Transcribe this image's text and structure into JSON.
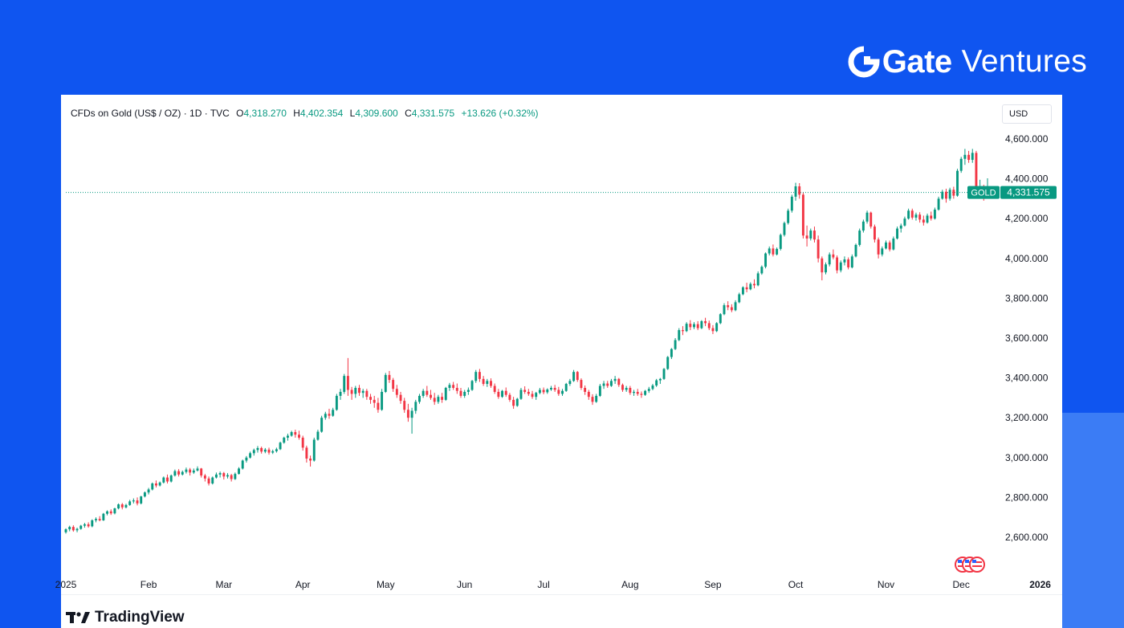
{
  "brand": {
    "word": "Gate",
    "sub": "Ventures",
    "colors": {
      "background": "#0f55f0",
      "text": "#ffffff"
    }
  },
  "legend": {
    "symbol": "CFDs on Gold (US$ / OZ) · 1D · TVC",
    "open_label": "O",
    "open": "4,318.270",
    "high_label": "H",
    "high": "4,402.354",
    "low_label": "L",
    "low": "4,309.600",
    "close_label": "C",
    "close": "4,331.575",
    "change": "+13.626 (+0.32%)"
  },
  "currency": "USD",
  "price_tag": {
    "symbol": "GOLD",
    "value": "4,331.575"
  },
  "footer": {
    "logo_text": "TradingView",
    "logo_icon": "tradingview-logo-icon"
  },
  "chart_data": {
    "type": "candlestick",
    "y_ticks": [
      "4,600.000",
      "4,400.000",
      "4,200.000",
      "4,000.000",
      "3,800.000",
      "3,600.000",
      "3,400.000",
      "3,200.000",
      "3,000.000",
      "2,800.000",
      "2,600.000"
    ],
    "y_tick_values": [
      4600,
      4400,
      4200,
      4000,
      3800,
      3600,
      3400,
      3200,
      3000,
      2800,
      2600
    ],
    "ylim": [
      2440,
      4660
    ],
    "x_ticks": [
      {
        "label": "2025",
        "index": 0
      },
      {
        "label": "Feb",
        "index": 22
      },
      {
        "label": "Mar",
        "index": 42
      },
      {
        "label": "Apr",
        "index": 63
      },
      {
        "label": "May",
        "index": 85
      },
      {
        "label": "Jun",
        "index": 106
      },
      {
        "label": "Jul",
        "index": 127
      },
      {
        "label": "Aug",
        "index": 150
      },
      {
        "label": "Sep",
        "index": 172
      },
      {
        "label": "Oct",
        "index": 194
      },
      {
        "label": "Nov",
        "index": 218
      },
      {
        "label": "Dec",
        "index": 238
      },
      {
        "label": "2026",
        "index": 259
      }
    ],
    "bold_x_labels": [
      "2026"
    ],
    "last_price": 4331.575,
    "colors": {
      "up": "#089981",
      "down": "#f23645",
      "price_line": "#089981"
    },
    "grid": false,
    "events_icon": "flag-us-icon",
    "ohlc": [
      [
        2625,
        2645,
        2618,
        2640
      ],
      [
        2640,
        2658,
        2630,
        2652
      ],
      [
        2652,
        2660,
        2628,
        2635
      ],
      [
        2635,
        2648,
        2625,
        2642
      ],
      [
        2642,
        2662,
        2638,
        2658
      ],
      [
        2658,
        2672,
        2648,
        2665
      ],
      [
        2665,
        2675,
        2648,
        2655
      ],
      [
        2655,
        2690,
        2650,
        2685
      ],
      [
        2685,
        2700,
        2675,
        2692
      ],
      [
        2692,
        2706,
        2680,
        2685
      ],
      [
        2685,
        2722,
        2682,
        2718
      ],
      [
        2718,
        2735,
        2710,
        2730
      ],
      [
        2730,
        2740,
        2712,
        2720
      ],
      [
        2720,
        2748,
        2715,
        2745
      ],
      [
        2745,
        2770,
        2740,
        2765
      ],
      [
        2765,
        2772,
        2740,
        2750
      ],
      [
        2750,
        2768,
        2745,
        2762
      ],
      [
        2762,
        2788,
        2758,
        2780
      ],
      [
        2780,
        2795,
        2770,
        2785
      ],
      [
        2785,
        2800,
        2760,
        2770
      ],
      [
        2770,
        2808,
        2765,
        2805
      ],
      [
        2805,
        2830,
        2800,
        2825
      ],
      [
        2825,
        2848,
        2815,
        2840
      ],
      [
        2840,
        2875,
        2835,
        2870
      ],
      [
        2870,
        2885,
        2850,
        2860
      ],
      [
        2860,
        2880,
        2855,
        2875
      ],
      [
        2875,
        2905,
        2870,
        2900
      ],
      [
        2900,
        2915,
        2870,
        2880
      ],
      [
        2880,
        2915,
        2875,
        2910
      ],
      [
        2910,
        2940,
        2905,
        2932
      ],
      [
        2932,
        2942,
        2905,
        2915
      ],
      [
        2915,
        2935,
        2910,
        2928
      ],
      [
        2928,
        2950,
        2920,
        2940
      ],
      [
        2940,
        2948,
        2910,
        2925
      ],
      [
        2925,
        2945,
        2918,
        2935
      ],
      [
        2935,
        2956,
        2930,
        2945
      ],
      [
        2945,
        2948,
        2900,
        2910
      ],
      [
        2910,
        2918,
        2880,
        2895
      ],
      [
        2895,
        2905,
        2860,
        2870
      ],
      [
        2870,
        2905,
        2865,
        2900
      ],
      [
        2900,
        2925,
        2895,
        2915
      ],
      [
        2915,
        2930,
        2900,
        2922
      ],
      [
        2922,
        2928,
        2890,
        2905
      ],
      [
        2905,
        2922,
        2895,
        2912
      ],
      [
        2912,
        2918,
        2880,
        2892
      ],
      [
        2892,
        2925,
        2888,
        2918
      ],
      [
        2918,
        2952,
        2915,
        2945
      ],
      [
        2945,
        2990,
        2940,
        2985
      ],
      [
        2985,
        3008,
        2975,
        3000
      ],
      [
        3000,
        3030,
        2995,
        3022
      ],
      [
        3022,
        3045,
        3010,
        3038
      ],
      [
        3038,
        3058,
        3025,
        3048
      ],
      [
        3048,
        3055,
        3020,
        3030
      ],
      [
        3030,
        3048,
        3022,
        3040
      ],
      [
        3040,
        3050,
        3015,
        3025
      ],
      [
        3025,
        3040,
        3018,
        3032
      ],
      [
        3032,
        3050,
        3025,
        3042
      ],
      [
        3042,
        3080,
        3038,
        3075
      ],
      [
        3075,
        3105,
        3070,
        3100
      ],
      [
        3100,
        3120,
        3085,
        3110
      ],
      [
        3110,
        3135,
        3105,
        3128
      ],
      [
        3128,
        3140,
        3100,
        3115
      ],
      [
        3115,
        3135,
        3090,
        3100
      ],
      [
        3100,
        3110,
        3035,
        3050
      ],
      [
        3050,
        3060,
        2975,
        2995
      ],
      [
        2995,
        3010,
        2955,
        2985
      ],
      [
        2985,
        3100,
        2980,
        3090
      ],
      [
        3090,
        3140,
        3085,
        3130
      ],
      [
        3130,
        3210,
        3125,
        3200
      ],
      [
        3200,
        3230,
        3190,
        3220
      ],
      [
        3220,
        3245,
        3195,
        3210
      ],
      [
        3210,
        3250,
        3205,
        3240
      ],
      [
        3240,
        3320,
        3235,
        3310
      ],
      [
        3310,
        3345,
        3290,
        3330
      ],
      [
        3330,
        3420,
        3320,
        3410
      ],
      [
        3410,
        3500,
        3310,
        3340
      ],
      [
        3340,
        3355,
        3290,
        3320
      ],
      [
        3320,
        3360,
        3300,
        3350
      ],
      [
        3350,
        3365,
        3310,
        3325
      ],
      [
        3325,
        3345,
        3300,
        3335
      ],
      [
        3335,
        3345,
        3290,
        3305
      ],
      [
        3305,
        3320,
        3270,
        3290
      ],
      [
        3290,
        3310,
        3250,
        3275
      ],
      [
        3275,
        3300,
        3225,
        3240
      ],
      [
        3240,
        3345,
        3235,
        3330
      ],
      [
        3330,
        3425,
        3325,
        3415
      ],
      [
        3415,
        3435,
        3375,
        3390
      ],
      [
        3390,
        3400,
        3330,
        3345
      ],
      [
        3345,
        3365,
        3300,
        3315
      ],
      [
        3315,
        3330,
        3270,
        3285
      ],
      [
        3285,
        3300,
        3225,
        3240
      ],
      [
        3240,
        3270,
        3180,
        3200
      ],
      [
        3200,
        3250,
        3120,
        3235
      ],
      [
        3235,
        3290,
        3220,
        3280
      ],
      [
        3280,
        3320,
        3270,
        3310
      ],
      [
        3310,
        3345,
        3300,
        3335
      ],
      [
        3335,
        3360,
        3305,
        3315
      ],
      [
        3315,
        3340,
        3290,
        3300
      ],
      [
        3300,
        3325,
        3265,
        3280
      ],
      [
        3280,
        3315,
        3270,
        3305
      ],
      [
        3305,
        3325,
        3275,
        3290
      ],
      [
        3290,
        3355,
        3285,
        3350
      ],
      [
        3350,
        3375,
        3335,
        3365
      ],
      [
        3365,
        3380,
        3340,
        3350
      ],
      [
        3350,
        3372,
        3320,
        3335
      ],
      [
        3335,
        3350,
        3300,
        3310
      ],
      [
        3310,
        3340,
        3300,
        3330
      ],
      [
        3330,
        3352,
        3315,
        3340
      ],
      [
        3340,
        3390,
        3335,
        3385
      ],
      [
        3385,
        3440,
        3375,
        3430
      ],
      [
        3430,
        3445,
        3380,
        3395
      ],
      [
        3395,
        3410,
        3360,
        3370
      ],
      [
        3370,
        3395,
        3355,
        3385
      ],
      [
        3385,
        3398,
        3350,
        3360
      ],
      [
        3360,
        3372,
        3320,
        3330
      ],
      [
        3330,
        3345,
        3295,
        3305
      ],
      [
        3305,
        3340,
        3300,
        3335
      ],
      [
        3335,
        3352,
        3305,
        3315
      ],
      [
        3315,
        3325,
        3280,
        3290
      ],
      [
        3290,
        3305,
        3245,
        3260
      ],
      [
        3260,
        3300,
        3255,
        3295
      ],
      [
        3295,
        3350,
        3290,
        3340
      ],
      [
        3340,
        3358,
        3320,
        3330
      ],
      [
        3330,
        3345,
        3310,
        3320
      ],
      [
        3320,
        3335,
        3295,
        3305
      ],
      [
        3305,
        3330,
        3290,
        3325
      ],
      [
        3325,
        3350,
        3318,
        3340
      ],
      [
        3340,
        3352,
        3318,
        3328
      ],
      [
        3328,
        3348,
        3320,
        3342
      ],
      [
        3342,
        3360,
        3335,
        3350
      ],
      [
        3350,
        3365,
        3330,
        3340
      ],
      [
        3340,
        3355,
        3310,
        3320
      ],
      [
        3320,
        3345,
        3310,
        3335
      ],
      [
        3335,
        3375,
        3330,
        3370
      ],
      [
        3370,
        3395,
        3360,
        3385
      ],
      [
        3385,
        3440,
        3380,
        3430
      ],
      [
        3430,
        3435,
        3380,
        3390
      ],
      [
        3390,
        3398,
        3340,
        3350
      ],
      [
        3350,
        3362,
        3315,
        3330
      ],
      [
        3330,
        3340,
        3290,
        3305
      ],
      [
        3305,
        3318,
        3265,
        3280
      ],
      [
        3280,
        3320,
        3275,
        3310
      ],
      [
        3310,
        3370,
        3305,
        3360
      ],
      [
        3360,
        3385,
        3345,
        3372
      ],
      [
        3372,
        3385,
        3350,
        3360
      ],
      [
        3360,
        3395,
        3355,
        3385
      ],
      [
        3385,
        3410,
        3370,
        3395
      ],
      [
        3395,
        3400,
        3355,
        3365
      ],
      [
        3365,
        3372,
        3330,
        3340
      ],
      [
        3340,
        3360,
        3330,
        3350
      ],
      [
        3350,
        3360,
        3315,
        3325
      ],
      [
        3325,
        3340,
        3310,
        3330
      ],
      [
        3330,
        3345,
        3310,
        3320
      ],
      [
        3320,
        3332,
        3300,
        3315
      ],
      [
        3315,
        3340,
        3310,
        3335
      ],
      [
        3335,
        3355,
        3325,
        3345
      ],
      [
        3345,
        3370,
        3338,
        3362
      ],
      [
        3362,
        3395,
        3355,
        3388
      ],
      [
        3388,
        3400,
        3370,
        3395
      ],
      [
        3395,
        3450,
        3390,
        3445
      ],
      [
        3445,
        3510,
        3440,
        3505
      ],
      [
        3505,
        3550,
        3495,
        3545
      ],
      [
        3545,
        3600,
        3540,
        3590
      ],
      [
        3590,
        3650,
        3585,
        3640
      ],
      [
        3640,
        3660,
        3615,
        3635
      ],
      [
        3635,
        3680,
        3630,
        3672
      ],
      [
        3672,
        3690,
        3640,
        3655
      ],
      [
        3655,
        3680,
        3645,
        3670
      ],
      [
        3670,
        3685,
        3640,
        3650
      ],
      [
        3650,
        3690,
        3645,
        3685
      ],
      [
        3685,
        3702,
        3660,
        3675
      ],
      [
        3675,
        3688,
        3640,
        3650
      ],
      [
        3650,
        3665,
        3620,
        3635
      ],
      [
        3635,
        3680,
        3630,
        3675
      ],
      [
        3675,
        3725,
        3670,
        3720
      ],
      [
        3720,
        3775,
        3715,
        3765
      ],
      [
        3765,
        3785,
        3740,
        3755
      ],
      [
        3755,
        3770,
        3730,
        3740
      ],
      [
        3740,
        3790,
        3735,
        3780
      ],
      [
        3780,
        3828,
        3775,
        3820
      ],
      [
        3820,
        3860,
        3815,
        3855
      ],
      [
        3855,
        3878,
        3830,
        3845
      ],
      [
        3845,
        3880,
        3840,
        3872
      ],
      [
        3872,
        3895,
        3850,
        3865
      ],
      [
        3865,
        3935,
        3860,
        3925
      ],
      [
        3925,
        3965,
        3918,
        3958
      ],
      [
        3958,
        4030,
        3950,
        4025
      ],
      [
        4025,
        4060,
        4015,
        4050
      ],
      [
        4050,
        4070,
        4010,
        4020
      ],
      [
        4020,
        4055,
        4015,
        4048
      ],
      [
        4048,
        4125,
        4040,
        4118
      ],
      [
        4118,
        4185,
        4110,
        4178
      ],
      [
        4178,
        4250,
        4170,
        4240
      ],
      [
        4240,
        4320,
        4230,
        4310
      ],
      [
        4310,
        4380,
        4290,
        4362
      ],
      [
        4362,
        4378,
        4300,
        4320
      ],
      [
        4320,
        4330,
        4100,
        4115
      ],
      [
        4115,
        4165,
        4060,
        4100
      ],
      [
        4100,
        4150,
        4090,
        4140
      ],
      [
        4140,
        4160,
        4080,
        4095
      ],
      [
        4095,
        4115,
        3980,
        4000
      ],
      [
        4000,
        4010,
        3890,
        3930
      ],
      [
        3930,
        3980,
        3920,
        3970
      ],
      [
        3970,
        4030,
        3960,
        4020
      ],
      [
        4020,
        4045,
        3995,
        4005
      ],
      [
        4005,
        4015,
        3925,
        3940
      ],
      [
        3940,
        3990,
        3930,
        3980
      ],
      [
        3980,
        4010,
        3965,
        3995
      ],
      [
        3995,
        4005,
        3945,
        3955
      ],
      [
        3955,
        4020,
        3950,
        4010
      ],
      [
        4010,
        4075,
        4005,
        4068
      ],
      [
        4068,
        4150,
        4060,
        4140
      ],
      [
        4140,
        4195,
        4130,
        4185
      ],
      [
        4185,
        4240,
        4175,
        4230
      ],
      [
        4230,
        4235,
        4150,
        4160
      ],
      [
        4160,
        4170,
        4080,
        4095
      ],
      [
        4095,
        4105,
        4000,
        4020
      ],
      [
        4020,
        4060,
        4010,
        4050
      ],
      [
        4050,
        4090,
        4045,
        4080
      ],
      [
        4080,
        4090,
        4035,
        4045
      ],
      [
        4045,
        4110,
        4040,
        4100
      ],
      [
        4100,
        4160,
        4095,
        4150
      ],
      [
        4150,
        4175,
        4130,
        4165
      ],
      [
        4165,
        4210,
        4160,
        4200
      ],
      [
        4200,
        4250,
        4195,
        4240
      ],
      [
        4240,
        4250,
        4195,
        4205
      ],
      [
        4205,
        4230,
        4190,
        4220
      ],
      [
        4220,
        4232,
        4180,
        4195
      ],
      [
        4195,
        4215,
        4165,
        4180
      ],
      [
        4180,
        4225,
        4175,
        4215
      ],
      [
        4215,
        4235,
        4190,
        4200
      ],
      [
        4200,
        4255,
        4195,
        4245
      ],
      [
        4245,
        4310,
        4240,
        4300
      ],
      [
        4300,
        4345,
        4295,
        4335
      ],
      [
        4335,
        4350,
        4280,
        4300
      ],
      [
        4300,
        4355,
        4290,
        4345
      ],
      [
        4345,
        4360,
        4300,
        4315
      ],
      [
        4315,
        4450,
        4310,
        4440
      ],
      [
        4440,
        4510,
        4430,
        4500
      ],
      [
        4500,
        4550,
        4470,
        4520
      ],
      [
        4520,
        4540,
        4480,
        4495
      ],
      [
        4495,
        4550,
        4480,
        4530
      ],
      [
        4530,
        4540,
        4320,
        4340
      ],
      [
        4340,
        4395,
        4300,
        4360
      ],
      [
        4360,
        4370,
        4290,
        4318
      ],
      [
        4318,
        4402.354,
        4309.6,
        4331.575
      ]
    ]
  }
}
